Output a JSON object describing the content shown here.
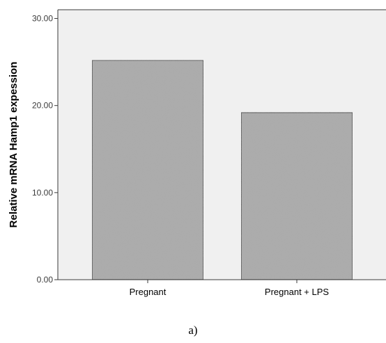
{
  "chart_data": {
    "type": "bar",
    "categories": [
      "Pregnant",
      "Pregnant + LPS"
    ],
    "values": [
      25.2,
      19.2
    ],
    "title": "",
    "xlabel": "",
    "ylabel": "Relative mRNA Hamp1 expession",
    "ylim": [
      0,
      31
    ],
    "yticks": [
      "0.00",
      "10.00",
      "20.00",
      "30.00"
    ],
    "grid": false,
    "colors": {
      "plot_bg": "#f0f0f0",
      "bar_fill": "#aaaaaa",
      "bar_stroke": "#222222",
      "axis": "#3a3a3a"
    }
  },
  "caption": "a)"
}
